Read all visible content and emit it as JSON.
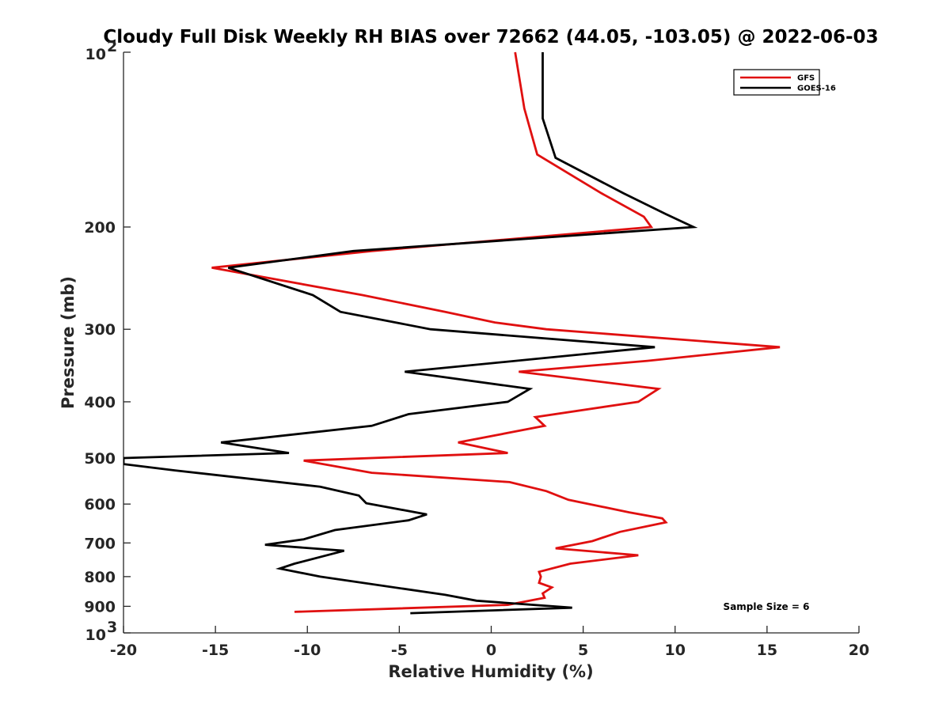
{
  "chart_data": {
    "type": "line",
    "title": "Cloudy Full Disk Weekly RH BIAS over 72662 (44.05, -103.05) @ 2022-06-03",
    "xlabel": "Relative Humidity (%)",
    "ylabel": "Pressure (mb)",
    "xlim": [
      -20,
      20
    ],
    "ylim": [
      100,
      1000
    ],
    "y_scale": "log",
    "y_reversed": true,
    "x_ticks": [
      -20,
      -15,
      -10,
      -5,
      0,
      5,
      10,
      15,
      20
    ],
    "x_tick_labels": [
      "-20",
      "-15",
      "-10",
      "-5",
      "0",
      "5",
      "10",
      "15",
      "20"
    ],
    "y_ticks": [
      200,
      300,
      400,
      500,
      600,
      700,
      800,
      900
    ],
    "y_tick_labels": [
      "200",
      "300",
      "400",
      "500",
      "600",
      "700",
      "800",
      "900"
    ],
    "y_end_labels": [
      {
        "value": 100,
        "base": "10",
        "exp": "2"
      },
      {
        "value": 1000,
        "base": "10",
        "exp": "3"
      }
    ],
    "grid": false,
    "legend_position": "top-right",
    "series": [
      {
        "name": "GFS",
        "color": "#e01010",
        "points": [
          [
            1.3,
            100
          ],
          [
            1.8,
            125
          ],
          [
            2.5,
            150
          ],
          [
            6,
            175
          ],
          [
            8.3,
            192
          ],
          [
            8.7,
            200
          ],
          [
            -6.5,
            220
          ],
          [
            -15.2,
            235
          ],
          [
            -7,
            262
          ],
          [
            -2.5,
            280
          ],
          [
            0.2,
            292
          ],
          [
            3,
            300
          ],
          [
            15.7,
            322
          ],
          [
            8.5,
            340
          ],
          [
            1.5,
            355
          ],
          [
            9.1,
            380
          ],
          [
            8,
            400
          ],
          [
            2.4,
            425
          ],
          [
            2.9,
            440
          ],
          [
            -1.8,
            470
          ],
          [
            0.9,
            490
          ],
          [
            -10.2,
            505
          ],
          [
            -6.5,
            530
          ],
          [
            1,
            550
          ],
          [
            3,
            570
          ],
          [
            4.2,
            590
          ],
          [
            7.5,
            620
          ],
          [
            9.3,
            635
          ],
          [
            9.5,
            645
          ],
          [
            7,
            670
          ],
          [
            5.5,
            695
          ],
          [
            3.5,
            715
          ],
          [
            8,
            735
          ],
          [
            4.3,
            760
          ],
          [
            2.6,
            785
          ],
          [
            2.7,
            800
          ],
          [
            2.6,
            820
          ],
          [
            3.3,
            835
          ],
          [
            2.8,
            855
          ],
          [
            2.9,
            870
          ],
          [
            0.9,
            895
          ],
          [
            -10.7,
            920
          ]
        ]
      },
      {
        "name": "GOES-16",
        "color": "#000000",
        "points": [
          [
            2.8,
            100
          ],
          [
            2.8,
            130
          ],
          [
            3.5,
            152
          ],
          [
            7.2,
            175
          ],
          [
            9.5,
            190
          ],
          [
            11,
            200
          ],
          [
            -7.5,
            220
          ],
          [
            -14.3,
            235
          ],
          [
            -9.7,
            262
          ],
          [
            -8.2,
            280
          ],
          [
            -3.3,
            300
          ],
          [
            8.9,
            322
          ],
          [
            -4.7,
            355
          ],
          [
            2.1,
            380
          ],
          [
            0.9,
            400
          ],
          [
            -4.5,
            420
          ],
          [
            -6.5,
            440
          ],
          [
            -14.7,
            470
          ],
          [
            -11,
            490
          ],
          [
            -20,
            500
          ],
          [
            -20,
            512
          ],
          [
            -17.2,
            525
          ],
          [
            -9.3,
            560
          ],
          [
            -7.2,
            580
          ],
          [
            -6.8,
            598
          ],
          [
            -3.5,
            625
          ],
          [
            -4.5,
            640
          ],
          [
            -8.5,
            665
          ],
          [
            -10.2,
            690
          ],
          [
            -12.3,
            705
          ],
          [
            -8,
            722
          ],
          [
            -10.7,
            760
          ],
          [
            -11.5,
            775
          ],
          [
            -9.3,
            800
          ],
          [
            -2.5,
            860
          ],
          [
            -0.8,
            880
          ],
          [
            4.4,
            905
          ],
          [
            -4.4,
            925
          ]
        ]
      }
    ],
    "annotations": [
      {
        "text": "Sample Size = 6"
      }
    ]
  }
}
